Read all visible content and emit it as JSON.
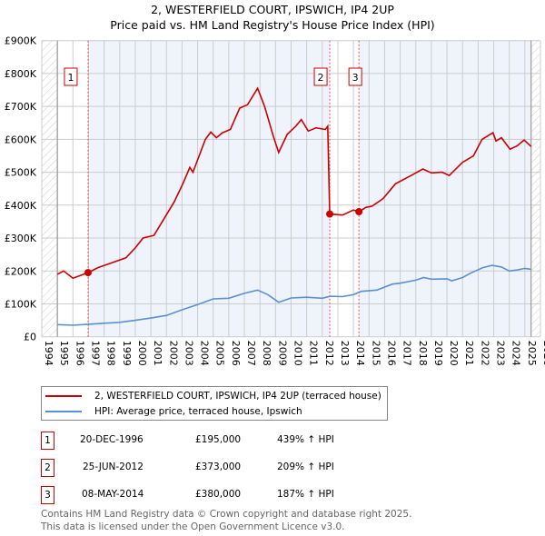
{
  "chart_data": {
    "type": "line",
    "title": "2, WESTERFIELD COURT, IPSWICH, IP4 2UP",
    "subtitle": "Price paid vs. HM Land Registry's House Price Index (HPI)",
    "xlim": [
      1994,
      2026
    ],
    "ylim": [
      0,
      900000
    ],
    "x_ticks": [
      "1994",
      "1995",
      "1996",
      "1997",
      "1998",
      "1999",
      "2000",
      "2001",
      "2002",
      "2003",
      "2004",
      "2005",
      "2006",
      "2007",
      "2008",
      "2009",
      "2010",
      "2011",
      "2012",
      "2013",
      "2014",
      "2015",
      "2016",
      "2017",
      "2018",
      "2019",
      "2020",
      "2021",
      "2022",
      "2023",
      "2024",
      "2025",
      "2026"
    ],
    "y_ticks": [
      {
        "v": 0,
        "label": "£0"
      },
      {
        "v": 100000,
        "label": "£100K"
      },
      {
        "v": 200000,
        "label": "£200K"
      },
      {
        "v": 300000,
        "label": "£300K"
      },
      {
        "v": 400000,
        "label": "£400K"
      },
      {
        "v": 500000,
        "label": "£500K"
      },
      {
        "v": 600000,
        "label": "£600K"
      },
      {
        "v": 700000,
        "label": "£700K"
      },
      {
        "v": 800000,
        "label": "£800K"
      },
      {
        "v": 900000,
        "label": "£900K"
      }
    ],
    "grid": true,
    "series": [
      {
        "name": "2, WESTERFIELD COURT, IPSWICH, IP4 2UP (terraced house)",
        "color": "#cc0000",
        "x": [
          1995,
          1995.4,
          1996,
          1996.97,
          1997.6,
          1998.5,
          1999.4,
          2000,
          2000.5,
          2001.2,
          2001.8,
          2002.5,
          2003.05,
          2003.5,
          2003.7,
          2004.5,
          2004.85,
          2005.2,
          2005.6,
          2006.1,
          2006.7,
          2007.2,
          2007.85,
          2008.3,
          2008.85,
          2009.2,
          2009.75,
          2010.3,
          2010.65,
          2011.1,
          2011.6,
          2012.2,
          2012.35,
          2012.48,
          2013.3,
          2014.0,
          2014.35,
          2014.8,
          2015.2,
          2015.9,
          2016.7,
          2017.7,
          2018.45,
          2019.0,
          2019.7,
          2020.15,
          2021.0,
          2021.7,
          2022.25,
          2022.95,
          2023.15,
          2023.5,
          2024.05,
          2024.5,
          2024.95,
          2025.4
        ],
        "y": [
          190000,
          200000,
          178000,
          195000,
          210000,
          225000,
          240000,
          270000,
          300000,
          308000,
          355000,
          410000,
          465000,
          515000,
          500000,
          600000,
          622000,
          605000,
          620000,
          630000,
          695000,
          705000,
          755000,
          700000,
          610000,
          560000,
          615000,
          640000,
          660000,
          625000,
          635000,
          630000,
          640000,
          373000,
          370000,
          385000,
          380000,
          393000,
          397000,
          420000,
          465000,
          490000,
          510000,
          498000,
          500000,
          490000,
          530000,
          550000,
          600000,
          620000,
          595000,
          605000,
          570000,
          580000,
          598000,
          578000
        ]
      },
      {
        "name": "HPI: Average price, terraced house, Ipswich",
        "color": "#5b8fd4",
        "x": [
          1995,
          1996,
          1997,
          1998,
          1999,
          2000,
          2001,
          2002,
          2003,
          2004,
          2005,
          2006,
          2007,
          2007.85,
          2008.5,
          2009.2,
          2010,
          2011,
          2012,
          2012.5,
          2013.3,
          2014,
          2014.5,
          2015.5,
          2016.5,
          2017,
          2018,
          2018.5,
          2019,
          2020,
          2020.3,
          2021,
          2021.5,
          2022.3,
          2022.9,
          2023.5,
          2024,
          2024.5,
          2025,
          2025.4
        ],
        "y": [
          37000,
          35000,
          38000,
          41000,
          44000,
          50000,
          57000,
          65000,
          82000,
          98000,
          115000,
          117000,
          132000,
          142000,
          128000,
          105000,
          118000,
          120000,
          117000,
          123000,
          122000,
          128000,
          138000,
          142000,
          160000,
          163000,
          172000,
          180000,
          175000,
          176000,
          170000,
          180000,
          193000,
          210000,
          217000,
          212000,
          200000,
          203000,
          208000,
          205000
        ]
      }
    ],
    "sales": [
      {
        "id": "1",
        "x": 1996.97,
        "y": 195000,
        "date": "20-DEC-1996",
        "price": "£195,000",
        "hpi": "439% ↑ HPI"
      },
      {
        "id": "2",
        "x": 2012.48,
        "y": 373000,
        "date": "25-JUN-2012",
        "price": "£373,000",
        "hpi": "209% ↑ HPI"
      },
      {
        "id": "3",
        "x": 2014.35,
        "y": 380000,
        "date": "08-MAY-2014",
        "price": "£380,000",
        "hpi": "187% ↑ HPI"
      }
    ],
    "data_start": 1995,
    "data_end": 2025.4
  },
  "footer": {
    "line1": "Contains HM Land Registry data © Crown copyright and database right 2025.",
    "line2": "This data is licensed under the Open Government Licence v3.0."
  }
}
